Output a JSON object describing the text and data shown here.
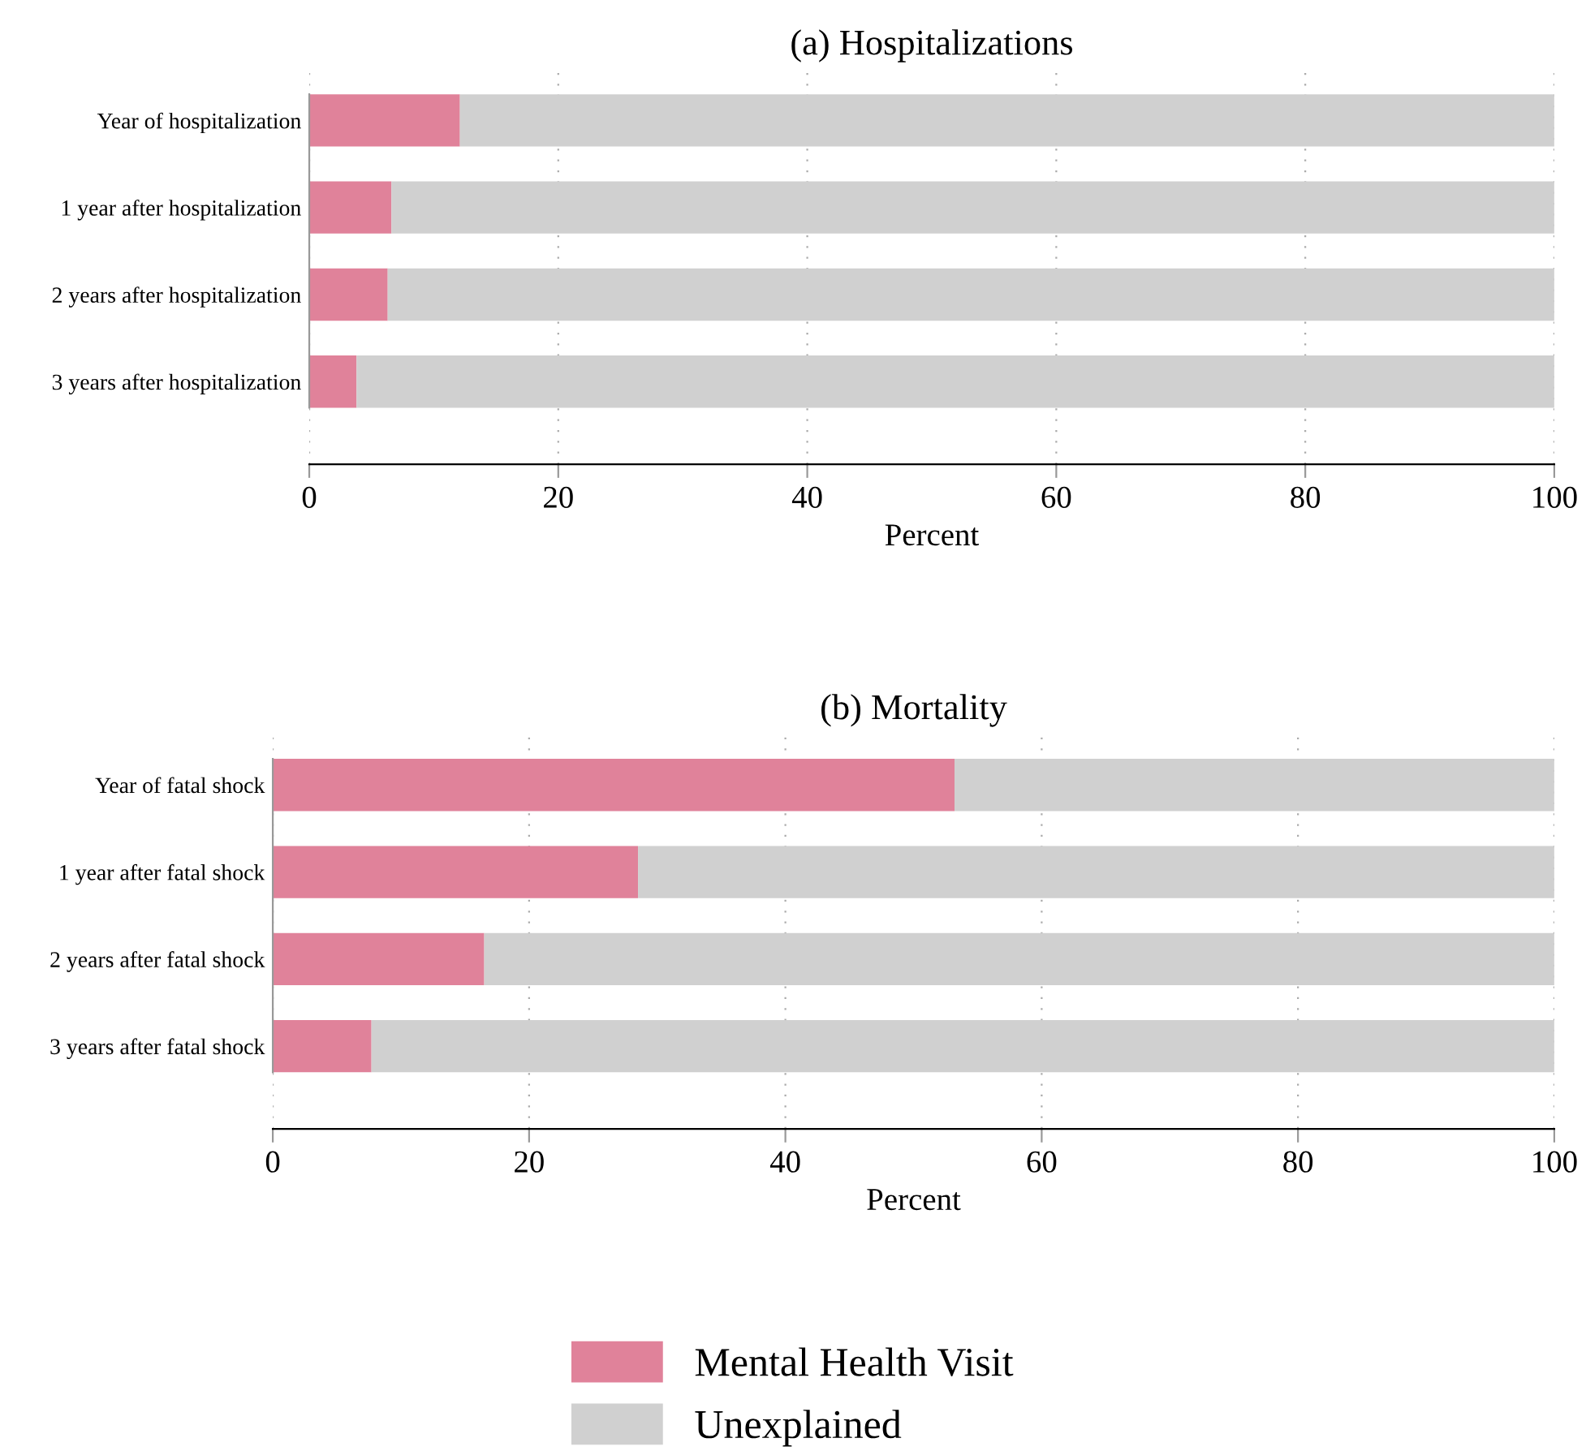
{
  "chart_data": [
    {
      "type": "bar",
      "orientation": "horizontal",
      "stacked": true,
      "title": "(a) Hospitalizations",
      "xlabel": "Percent",
      "categories": [
        "Year of hospitalization",
        "1 year after hospitalization",
        "2 years after hospitalization",
        "3 years after hospitalization"
      ],
      "series": [
        {
          "name": "Mental Health Visit",
          "color": "#e0829a",
          "values": [
            12.1,
            6.6,
            6.3,
            3.8
          ]
        },
        {
          "name": "Unexplained",
          "color": "#d0d0d0",
          "values": [
            87.9,
            93.4,
            93.7,
            96.2
          ]
        }
      ],
      "xlim": [
        0,
        100
      ],
      "xticks": [
        0,
        20,
        40,
        60,
        80,
        100
      ],
      "grid": "x",
      "legend": "bottom"
    },
    {
      "type": "bar",
      "orientation": "horizontal",
      "stacked": true,
      "title": "(b) Mortality",
      "xlabel": "Percent",
      "categories": [
        "Year of fatal shock",
        "1 year after fatal shock",
        "2 years after fatal shock",
        "3 years after fatal shock"
      ],
      "series": [
        {
          "color": "#e0829a",
          "values": [
            53.2,
            28.5,
            16.5,
            7.7
          ]
        },
        {
          "color": "#d0d0d0",
          "values": [
            46.8,
            71.5,
            83.5,
            92.3
          ]
        }
      ],
      "xlim": [
        0,
        100
      ],
      "xticks": [
        0,
        20,
        40,
        60,
        80,
        100
      ],
      "grid": "x"
    }
  ]
}
